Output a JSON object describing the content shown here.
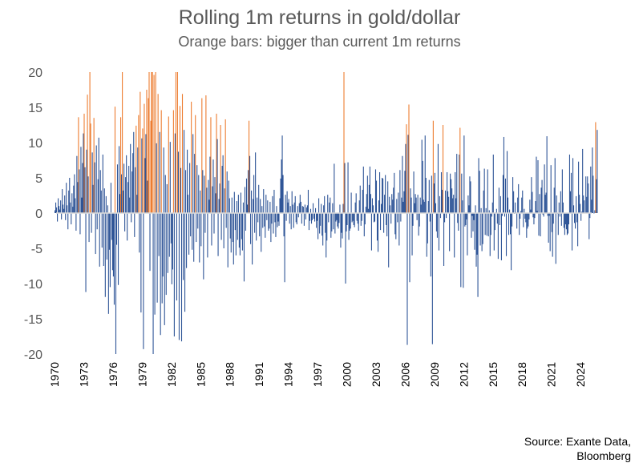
{
  "chart_data": {
    "type": "bar",
    "title": "Rolling 1m returns in gold/dollar",
    "subtitle": "Orange bars: bigger than current 1m returns",
    "xlabel": "",
    "ylabel": "",
    "ylim": [
      -20,
      20
    ],
    "y_ticks": [
      20,
      15,
      10,
      5,
      0,
      -5,
      -10,
      -15,
      -20
    ],
    "x_tick_labels": [
      "1970",
      "1973",
      "1976",
      "1979",
      "1982",
      "1985",
      "1988",
      "1991",
      "1994",
      "1997",
      "2000",
      "2003",
      "2006",
      "2009",
      "2012",
      "2015",
      "2018",
      "2021",
      "2024"
    ],
    "x_range_years": [
      1970.0,
      2025.75
    ],
    "current_1m_return": 11.8,
    "colors": {
      "normal": "#2F5597",
      "bigger_than_current": "#ED7D31",
      "zero_line": "#D9D9D9"
    },
    "series": [
      {
        "name": "Rolling 1m returns (%)",
        "frequency": "monthly, approx. per year (Jan..Dec); values estimated from the figure",
        "values_by_year": {
          "1970": [
            0.4,
            1.5,
            0.8,
            -1.2,
            2.1,
            1.0,
            0.5,
            1.8,
            -0.9,
            3.4,
            1.2,
            0.6
          ],
          "1971": [
            2.5,
            -1.0,
            4.3,
            1.1,
            -2.3,
            3.2,
            5.0,
            1.5,
            -1.6,
            2.8,
            0.9,
            3.9
          ],
          "1972": [
            5.5,
            2.1,
            -2.5,
            8.1,
            4.4,
            13.6,
            6.2,
            -3.0,
            9.4,
            2.2,
            7.1,
            11.3
          ],
          "1973": [
            14.1,
            6.5,
            -11.2,
            9.0,
            16.8,
            5.2,
            -4.1,
            20.0,
            12.7,
            -2.8,
            8.6,
            4.0
          ],
          "1974": [
            13.5,
            7.2,
            -5.8,
            9.6,
            -2.3,
            4.8,
            10.7,
            -7.6,
            6.1,
            3.2,
            -4.9,
            8.3
          ],
          "1975": [
            -7.5,
            3.5,
            -11.9,
            2.4,
            -6.6,
            1.1,
            -14.3,
            -5.2,
            -10.5,
            4.3,
            -3.8,
            -8.1
          ],
          "1976": [
            -9.0,
            -13.0,
            15.1,
            -20.0,
            -4.5,
            6.9,
            -10.2,
            9.5,
            2.7,
            13.6,
            5.5,
            20.0
          ],
          "1977": [
            3.2,
            7.0,
            -2.6,
            5.1,
            8.2,
            -3.9,
            4.4,
            6.7,
            2.2,
            9.8,
            -1.3,
            5.9
          ],
          "1978": [
            8.5,
            11.5,
            -3.4,
            6.5,
            12.4,
            2.6,
            9.3,
            13.9,
            -5.6,
            17.2,
            -14.1,
            10.6
          ],
          "1979": [
            12.0,
            -19.3,
            15.5,
            7.8,
            11.2,
            17.5,
            4.6,
            16.3,
            20.0,
            -8.2,
            13.1,
            20.0
          ],
          "1980": [
            20.0,
            -20.0,
            19.6,
            -14.4,
            20.0,
            9.9,
            -12.7,
            16.9,
            -6.1,
            11.5,
            -17.3,
            14.6
          ],
          "1981": [
            -12.8,
            -9.0,
            9.3,
            -15.9,
            5.4,
            -11.6,
            4.1,
            -8.5,
            13.7,
            -6.2,
            10.1,
            -4.3
          ],
          "1982": [
            -10.1,
            -8.0,
            14.6,
            -17.5,
            11.3,
            20.0,
            -12.4,
            20.0,
            8.7,
            -18.0,
            15.2,
            6.4
          ],
          "1983": [
            -18.2,
            16.9,
            -9.5,
            11.8,
            -14.0,
            6.1,
            -7.8,
            9.0,
            2.6,
            -5.9,
            7.1,
            -3.3
          ],
          "1984": [
            15.8,
            -5.2,
            11.2,
            -6.9,
            8.4,
            13.9,
            -4.1,
            6.8,
            -2.2,
            5.4,
            -7.0,
            3.2
          ],
          "1985": [
            -4.7,
            16.3,
            6.1,
            -9.4,
            5.3,
            -2.8,
            16.7,
            3.6,
            -6.3,
            4.7,
            1.9,
            8.0
          ],
          "1986": [
            13.6,
            -4.6,
            3.8,
            7.6,
            -2.9,
            5.1,
            2.8,
            14.1,
            10.5,
            -6.1,
            2.0,
            4.2
          ],
          "1987": [
            12.5,
            -3.8,
            6.7,
            8.2,
            -5.0,
            3.5,
            13.3,
            -2.1,
            5.9,
            -7.7,
            4.6,
            2.1
          ],
          "1988": [
            -3.6,
            -5.6,
            2.2,
            -4.1,
            -7.3,
            3.0,
            -2.4,
            -6.0,
            1.7,
            -3.8,
            2.6,
            -4.9
          ],
          "1989": [
            -6.0,
            2.9,
            -3.7,
            -5.3,
            1.5,
            -9.7,
            3.7,
            -2.5,
            4.9,
            1.2,
            6.1,
            13.1
          ],
          "1990": [
            8.1,
            -4.4,
            3.2,
            -7.3,
            2.0,
            5.4,
            -2.8,
            8.6,
            -3.9,
            2.2,
            -1.3,
            4.0
          ],
          "1991": [
            -3.3,
            2.0,
            -5.5,
            1.0,
            -2.1,
            3.4,
            -1.9,
            -3.5,
            2.6,
            -1.0,
            1.8,
            -2.5
          ],
          "1992": [
            -2.2,
            1.6,
            -4.1,
            -1.5,
            2.4,
            -2.9,
            3.3,
            -1.3,
            -3.4,
            1.0,
            -2.0,
            -1.2
          ],
          "1993": [
            -1.8,
            2.1,
            4.9,
            7.6,
            11.0,
            5.4,
            -3.3,
            -9.8,
            2.6,
            -1.1,
            3.1,
            1.5
          ],
          "1994": [
            2.0,
            -1.5,
            1.0,
            -2.3,
            3.1,
            1.2,
            -2.1,
            1.5,
            2.4,
            -1.3,
            -1.6,
            1.0
          ],
          "1995": [
            -0.6,
            1.4,
            2.6,
            1.6,
            -1.5,
            1.0,
            0.9,
            -1.8,
            1.2,
            -0.9,
            0.8,
            1.1
          ],
          "1996": [
            3.3,
            -2.4,
            -1.1,
            0.6,
            -1.5,
            -1.0,
            1.4,
            -0.8,
            -1.2,
            0.7,
            -2.1,
            -1.1
          ],
          "1997": [
            -3.7,
            2.1,
            -2.9,
            -1.8,
            1.3,
            -3.2,
            -4.6,
            1.1,
            2.4,
            -2.8,
            -6.3,
            -3.9
          ],
          "1998": [
            2.6,
            -1.3,
            1.5,
            2.2,
            -3.5,
            -2.6,
            1.4,
            -2.3,
            7.0,
            -2.9,
            -1.2,
            -1.0
          ],
          "1999": [
            -1.9,
            -2.2,
            -1.4,
            1.2,
            -4.9,
            -2.8,
            -3.6,
            1.3,
            20.0,
            7.1,
            -10.0,
            -2.6
          ],
          "2000": [
            -1.7,
            7.2,
            -3.8,
            -2.5,
            -2.2,
            2.9,
            -1.3,
            -1.1,
            -1.7,
            -2.0,
            1.5,
            2.8
          ],
          "2001": [
            -1.1,
            -1.5,
            -2.5,
            1.8,
            3.9,
            -1.8,
            -1.1,
            3.3,
            6.6,
            -3.3,
            -1.6,
            0.9
          ],
          "2002": [
            2.7,
            5.3,
            0.6,
            4.0,
            6.6,
            2.7,
            -5.3,
            2.1,
            1.1,
            -1.3,
            -1.2,
            6.2
          ],
          "2003": [
            4.6,
            -3.9,
            -5.5,
            1.8,
            5.8,
            -2.4,
            1.3,
            5.0,
            4.9,
            -2.8,
            2.6,
            5.4
          ],
          "2004": [
            -1.7,
            -3.3,
            4.5,
            -7.7,
            2.3,
            1.1,
            -1.5,
            2.7,
            1.9,
            3.6,
            5.7,
            -3.0
          ],
          "2005": [
            -3.7,
            2.0,
            -1.3,
            2.9,
            -4.6,
            6.1,
            -1.2,
            2.2,
            8.1,
            1.6,
            3.1,
            6.0
          ],
          "2006": [
            9.8,
            12.6,
            -18.7,
            11.1,
            15.4,
            -9.8,
            3.5,
            2.2,
            -6.0,
            -1.8,
            5.9,
            1.4
          ],
          "2007": [
            2.7,
            2.2,
            -1.0,
            2.6,
            -3.2,
            -1.9,
            2.2,
            1.2,
            10.4,
            7.4,
            1.9,
            1.6
          ],
          "2008": [
            11.0,
            5.0,
            -6.2,
            -4.3,
            1.7,
            4.7,
            -1.2,
            -9.0,
            5.3,
            -18.6,
            13.1,
            4.2
          ],
          "2009": [
            5.7,
            1.4,
            -2.6,
            -3.5,
            9.8,
            -5.3,
            2.4,
            -0.7,
            5.8,
            3.3,
            12.5,
            -7.5
          ],
          "2010": [
            -1.3,
            3.2,
            -0.7,
            5.8,
            3.1,
            2.3,
            -5.4,
            5.6,
            4.8,
            3.5,
            2.1,
            2.6
          ],
          "2011": [
            -6.3,
            5.8,
            2.1,
            8.4,
            -1.4,
            -2.5,
            8.3,
            12.1,
            -10.5,
            5.6,
            1.8,
            -10.6
          ],
          "2012": [
            11.0,
            -1.9,
            -1.7,
            -0.9,
            -6.0,
            2.5,
            1.1,
            5.2,
            4.5,
            -3.5,
            -0.4,
            -2.6
          ],
          "2013": [
            -1.0,
            -5.2,
            1.1,
            -7.6,
            -5.9,
            -11.9,
            7.8,
            6.0,
            -4.6,
            0.7,
            -5.4,
            -4.4
          ],
          "2014": [
            3.2,
            6.3,
            -3.1,
            0.7,
            -3.2,
            6.2,
            -3.3,
            0.4,
            -6.1,
            -3.1,
            -0.5,
            1.5
          ],
          "2015": [
            8.3,
            -5.3,
            -2.4,
            0.1,
            0.6,
            -1.5,
            -6.5,
            3.6,
            -1.7,
            2.4,
            -6.7,
            -0.4
          ],
          "2016": [
            5.4,
            10.8,
            -0.5,
            4.9,
            -6.1,
            8.8,
            2.2,
            -3.1,
            0.5,
            -3.0,
            -8.1,
            -1.9
          ],
          "2017": [
            5.1,
            3.1,
            -0.1,
            1.5,
            0.1,
            -2.2,
            2.2,
            4.1,
            -3.1,
            -0.8,
            0.3,
            2.2
          ],
          "2018": [
            3.2,
            -2.0,
            0.6,
            -0.8,
            -1.3,
            -3.5,
            -2.2,
            -1.9,
            -0.9,
            1.9,
            0.5,
            5.1
          ],
          "2019": [
            3.0,
            -0.6,
            -1.6,
            -0.7,
            1.7,
            8.0,
            0.3,
            7.5,
            -3.2,
            2.7,
            -3.3,
            3.6
          ],
          "2020": [
            4.7,
            -0.2,
            -0.5,
            6.9,
            2.6,
            2.9,
            10.9,
            -0.4,
            -4.2,
            -0.4,
            -5.4,
            6.8
          ],
          "2021": [
            -2.7,
            -6.2,
            -1.5,
            3.6,
            7.8,
            -7.2,
            2.5,
            -0.1,
            -3.1,
            1.5,
            -0.5,
            3.1
          ],
          "2022": [
            -1.8,
            6.2,
            1.5,
            -2.1,
            -3.1,
            -1.6,
            -2.3,
            -3.1,
            -2.9,
            -1.6,
            8.3,
            3.1
          ],
          "2023": [
            5.7,
            -5.3,
            7.8,
            1.1,
            -1.4,
            -2.2,
            2.4,
            -1.3,
            -4.7,
            7.3,
            2.6,
            1.3
          ],
          "2024": [
            -1.1,
            0.2,
            9.1,
            2.5,
            1.8,
            0.0,
            5.2,
            2.3,
            5.2,
            4.2,
            -3.7,
            -0.7
          ],
          "2025": [
            6.6,
            1.9,
            9.3,
            5.3,
            0.0,
            0.4,
            12.9,
            4.8,
            11.8
          ]
        }
      }
    ]
  },
  "source": {
    "line1": "Source: Exante Data,",
    "line2": "Bloomberg"
  }
}
